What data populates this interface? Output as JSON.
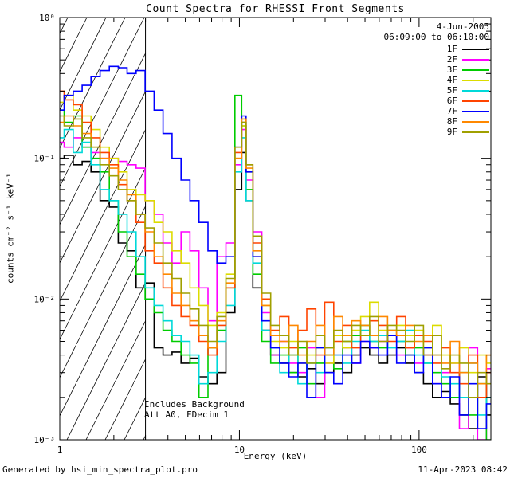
{
  "header": {
    "date": "4-Jun-2005",
    "time_range": "06:09:00 to 06:10:00"
  },
  "annotations": {
    "line1": "Includes Background",
    "line2": "Att A0, FDecim 1"
  },
  "footer": {
    "left": "Generated by hsi_min_spectra_plot.pro",
    "right": "11-Apr-2023 08:42"
  },
  "chart_data": {
    "type": "line",
    "title": "Count Spectra for RHESSI Front Segments",
    "xlabel": "Energy (keV)",
    "ylabel": "counts cm⁻² s⁻¹ keV⁻¹",
    "x_scale": "log",
    "y_scale": "log",
    "xlim": [
      1,
      251
    ],
    "ylim": [
      0.001,
      1
    ],
    "grid": false,
    "legend_position": "top-right",
    "x_ticks": [
      {
        "v": 1,
        "label": "1"
      },
      {
        "v": 10,
        "label": "10"
      },
      {
        "v": 100,
        "label": "100"
      }
    ],
    "y_ticks": [
      {
        "v": 0.001,
        "label": "10⁻³"
      },
      {
        "v": 0.01,
        "label": "10⁻²"
      },
      {
        "v": 0.1,
        "label": "10⁻¹"
      },
      {
        "v": 1,
        "label": "10⁰"
      }
    ],
    "hatch_region": {
      "start": 1,
      "end": 3.0
    },
    "energy": [
      1.0,
      1.12,
      1.26,
      1.41,
      1.58,
      1.78,
      2.0,
      2.24,
      2.51,
      2.82,
      3.16,
      3.55,
      3.98,
      4.47,
      5.01,
      5.62,
      6.31,
      7.08,
      7.94,
      8.91,
      10.0,
      10.6,
      11.2,
      12.6,
      14.1,
      15.8,
      17.8,
      20.0,
      22.4,
      25.1,
      28.2,
      31.6,
      35.5,
      39.8,
      44.7,
      50.1,
      56.2,
      63.1,
      70.8,
      79.4,
      89.1,
      100,
      112,
      126,
      141,
      158,
      178,
      200,
      224,
      251
    ],
    "series": [
      {
        "name": "1F",
        "color": "#000000",
        "values": [
          0.1,
          0.105,
          0.09,
          0.095,
          0.08,
          0.05,
          0.045,
          0.025,
          0.022,
          0.012,
          0.013,
          0.0045,
          0.004,
          0.0042,
          0.0035,
          0.0038,
          0.0028,
          0.0025,
          0.003,
          0.008,
          0.06,
          0.11,
          0.05,
          0.012,
          0.006,
          0.004,
          0.0035,
          0.003,
          0.0028,
          0.0032,
          0.0025,
          0.003,
          0.0035,
          0.003,
          0.004,
          0.0045,
          0.004,
          0.0035,
          0.004,
          0.0045,
          0.0035,
          0.003,
          0.0025,
          0.002,
          0.0022,
          0.0018,
          0.0015,
          0.0012,
          0.0028,
          0.0015
        ]
      },
      {
        "name": "2F",
        "color": "#ff00ff",
        "values": [
          0.13,
          0.12,
          0.14,
          0.12,
          0.11,
          0.1,
          0.1,
          0.095,
          0.09,
          0.085,
          0.05,
          0.04,
          0.025,
          0.018,
          0.03,
          0.022,
          0.012,
          0.007,
          0.02,
          0.025,
          0.09,
          0.16,
          0.07,
          0.03,
          0.008,
          0.004,
          0.005,
          0.0035,
          0.003,
          0.0045,
          0.002,
          0.0035,
          0.004,
          0.0045,
          0.0035,
          0.005,
          0.0045,
          0.005,
          0.0055,
          0.004,
          0.0045,
          0.0035,
          0.004,
          0.0025,
          0.003,
          0.0035,
          0.0012,
          0.0045,
          0.001,
          0.0032
        ]
      },
      {
        "name": "3F",
        "color": "#00cc00",
        "values": [
          0.22,
          0.18,
          0.2,
          0.12,
          0.1,
          0.08,
          0.05,
          0.03,
          0.02,
          0.015,
          0.01,
          0.008,
          0.006,
          0.005,
          0.004,
          0.0035,
          0.002,
          0.0045,
          0.006,
          0.012,
          0.28,
          0.17,
          0.06,
          0.015,
          0.005,
          0.0035,
          0.004,
          0.003,
          0.0045,
          0.0025,
          0.0035,
          0.004,
          0.0032,
          0.005,
          0.0055,
          0.0065,
          0.005,
          0.0045,
          0.006,
          0.005,
          0.004,
          0.0045,
          0.0035,
          0.003,
          0.0025,
          0.002,
          0.003,
          0.0015,
          0.0025,
          0.001
        ]
      },
      {
        "name": "4F",
        "color": "#dcdc00",
        "values": [
          0.25,
          0.28,
          0.22,
          0.2,
          0.16,
          0.12,
          0.1,
          0.08,
          0.06,
          0.055,
          0.05,
          0.035,
          0.03,
          0.022,
          0.018,
          0.012,
          0.009,
          0.0065,
          0.008,
          0.015,
          0.1,
          0.17,
          0.08,
          0.02,
          0.009,
          0.005,
          0.0045,
          0.005,
          0.0035,
          0.004,
          0.0045,
          0.0035,
          0.0055,
          0.0045,
          0.006,
          0.0075,
          0.0095,
          0.006,
          0.0055,
          0.0065,
          0.0055,
          0.006,
          0.0045,
          0.0065,
          0.004,
          0.0035,
          0.0045,
          0.003,
          0.004,
          0.0035
        ]
      },
      {
        "name": "5F",
        "color": "#00d9d9",
        "values": [
          0.14,
          0.16,
          0.11,
          0.13,
          0.09,
          0.06,
          0.05,
          0.04,
          0.03,
          0.02,
          0.012,
          0.009,
          0.007,
          0.0055,
          0.005,
          0.004,
          0.0025,
          0.003,
          0.005,
          0.009,
          0.08,
          0.14,
          0.05,
          0.018,
          0.006,
          0.0045,
          0.003,
          0.004,
          0.0025,
          0.0035,
          0.003,
          0.0045,
          0.004,
          0.0035,
          0.005,
          0.006,
          0.005,
          0.0055,
          0.0045,
          0.005,
          0.006,
          0.004,
          0.0035,
          0.004,
          0.0028,
          0.0025,
          0.002,
          0.0035,
          0.0015,
          0.002
        ]
      },
      {
        "name": "6F",
        "color": "#ff4400",
        "values": [
          0.3,
          0.26,
          0.24,
          0.18,
          0.14,
          0.11,
          0.09,
          0.065,
          0.05,
          0.035,
          0.022,
          0.018,
          0.012,
          0.009,
          0.0075,
          0.0065,
          0.005,
          0.004,
          0.0065,
          0.012,
          0.11,
          0.18,
          0.09,
          0.025,
          0.01,
          0.006,
          0.0075,
          0.0045,
          0.006,
          0.0085,
          0.004,
          0.0095,
          0.005,
          0.0065,
          0.0045,
          0.0055,
          0.007,
          0.0065,
          0.005,
          0.0075,
          0.0045,
          0.0055,
          0.005,
          0.0035,
          0.0045,
          0.003,
          0.0025,
          0.004,
          0.002,
          0.003
        ]
      },
      {
        "name": "7F",
        "color": "#0000ff",
        "values": [
          0.22,
          0.28,
          0.3,
          0.33,
          0.38,
          0.42,
          0.45,
          0.44,
          0.4,
          0.42,
          0.3,
          0.22,
          0.15,
          0.1,
          0.07,
          0.05,
          0.035,
          0.022,
          0.018,
          0.02,
          0.12,
          0.2,
          0.08,
          0.02,
          0.007,
          0.0045,
          0.0035,
          0.0028,
          0.0035,
          0.002,
          0.0045,
          0.003,
          0.0025,
          0.004,
          0.0035,
          0.005,
          0.0045,
          0.004,
          0.0055,
          0.0035,
          0.004,
          0.003,
          0.0045,
          0.0025,
          0.002,
          0.0028,
          0.0015,
          0.0025,
          0.0012,
          0.0018
        ]
      },
      {
        "name": "8F",
        "color": "#ff8800",
        "values": [
          0.18,
          0.2,
          0.17,
          0.15,
          0.12,
          0.1,
          0.085,
          0.07,
          0.055,
          0.04,
          0.03,
          0.02,
          0.015,
          0.011,
          0.009,
          0.007,
          0.0055,
          0.0045,
          0.007,
          0.013,
          0.1,
          0.19,
          0.085,
          0.022,
          0.009,
          0.0055,
          0.005,
          0.0065,
          0.004,
          0.005,
          0.0065,
          0.004,
          0.0075,
          0.0055,
          0.007,
          0.0065,
          0.0055,
          0.0075,
          0.006,
          0.0055,
          0.0065,
          0.005,
          0.0055,
          0.004,
          0.0035,
          0.005,
          0.003,
          0.0035,
          0.0025,
          0.004
        ]
      },
      {
        "name": "9F",
        "color": "#a0a000",
        "values": [
          0.2,
          0.17,
          0.19,
          0.14,
          0.12,
          0.09,
          0.075,
          0.06,
          0.05,
          0.04,
          0.032,
          0.025,
          0.018,
          0.014,
          0.011,
          0.0085,
          0.0065,
          0.005,
          0.0075,
          0.014,
          0.12,
          0.18,
          0.09,
          0.028,
          0.011,
          0.0065,
          0.0055,
          0.004,
          0.005,
          0.0035,
          0.0055,
          0.0045,
          0.006,
          0.005,
          0.0065,
          0.0055,
          0.0075,
          0.005,
          0.0065,
          0.006,
          0.005,
          0.0065,
          0.004,
          0.0055,
          0.0032,
          0.004,
          0.0035,
          0.002,
          0.003,
          0.0025
        ]
      }
    ]
  }
}
